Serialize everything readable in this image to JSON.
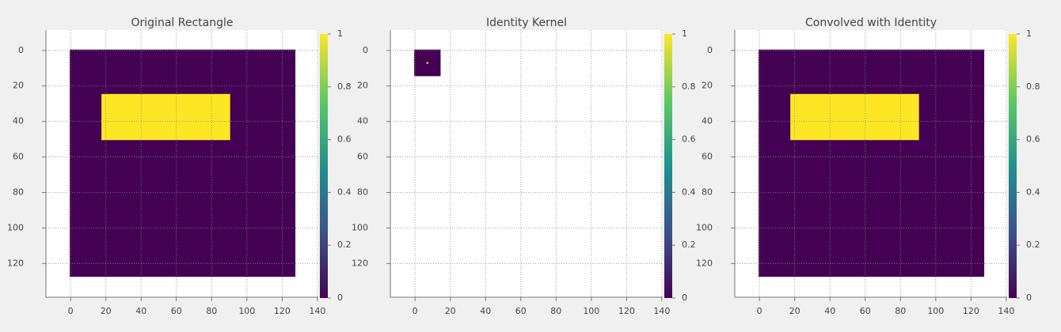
{
  "chart_data": [
    {
      "type": "image",
      "title": "Original Rectangle",
      "colormap": "viridis",
      "grid": true,
      "xlim": [
        -14,
        140.5
      ],
      "ylim": [
        139,
        -11.5
      ],
      "xticks": [
        0,
        20,
        40,
        60,
        80,
        100,
        120,
        140
      ],
      "yticks": [
        0,
        20,
        40,
        60,
        80,
        100,
        120
      ],
      "rects": [
        {
          "x": [
            -0.5,
            127.5
          ],
          "y": [
            -0.5,
            127.5
          ],
          "value": 0
        },
        {
          "x": [
            17.5,
            90.5
          ],
          "y": [
            24.5,
            50.5
          ],
          "value": 1
        }
      ],
      "colorbar": {
        "lim": [
          0,
          1
        ],
        "ticks": [
          0,
          0.2,
          0.4,
          0.6,
          0.8,
          1
        ]
      }
    },
    {
      "type": "image",
      "title": "Identity Kernel",
      "colormap": "viridis",
      "grid": true,
      "xlim": [
        -14,
        140.5
      ],
      "ylim": [
        139,
        -11.5
      ],
      "xticks": [
        0,
        20,
        40,
        60,
        80,
        100,
        120,
        140
      ],
      "yticks": [
        0,
        20,
        40,
        60,
        80,
        100,
        120
      ],
      "rects": [
        {
          "x": [
            -0.5,
            14.5
          ],
          "y": [
            -0.5,
            14.5
          ],
          "value": 0
        },
        {
          "x": [
            6.5,
            7.5
          ],
          "y": [
            6.5,
            7.5
          ],
          "value": 1
        }
      ],
      "colorbar": {
        "lim": [
          0,
          1
        ],
        "ticks": [
          0,
          0.2,
          0.4,
          0.6,
          0.8,
          1
        ]
      }
    },
    {
      "type": "image",
      "title": "Convolved with Identity",
      "colormap": "viridis",
      "grid": true,
      "xlim": [
        -14,
        140.5
      ],
      "ylim": [
        139,
        -11.5
      ],
      "xticks": [
        0,
        20,
        40,
        60,
        80,
        100,
        120,
        140
      ],
      "yticks": [
        0,
        20,
        40,
        60,
        80,
        100,
        120
      ],
      "rects": [
        {
          "x": [
            -0.5,
            127.5
          ],
          "y": [
            -0.5,
            127.5
          ],
          "value": 0
        },
        {
          "x": [
            17.5,
            90.5
          ],
          "y": [
            24.5,
            50.5
          ],
          "value": 1
        }
      ],
      "colorbar": {
        "lim": [
          0,
          1
        ],
        "ticks": [
          0,
          0.2,
          0.4,
          0.6,
          0.8,
          1
        ]
      }
    }
  ]
}
